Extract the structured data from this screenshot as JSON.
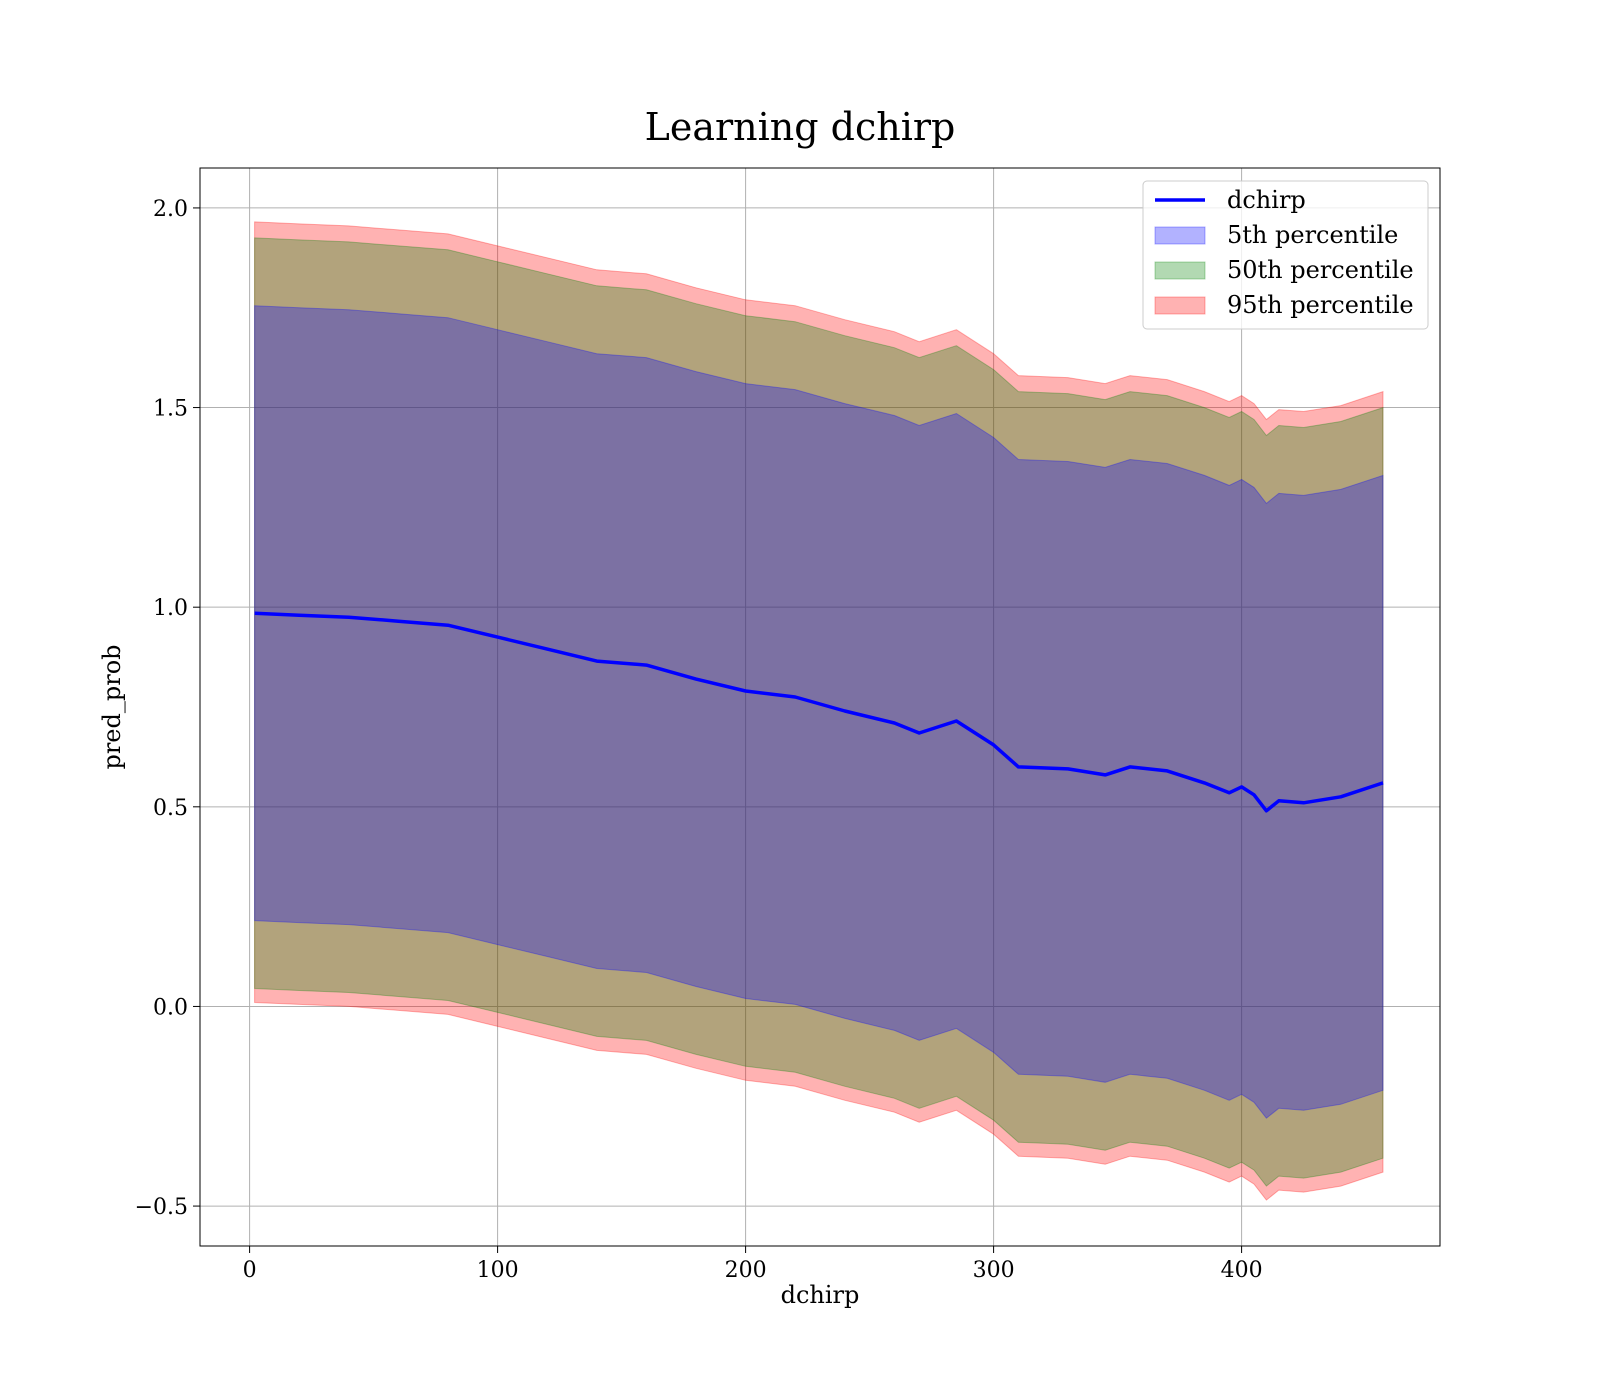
{
  "chart_data": {
    "type": "area",
    "title": "Learning dchirp",
    "xlabel": "dchirp",
    "ylabel": "pred_prob",
    "xlim": [
      -20,
      480
    ],
    "ylim": [
      -0.6,
      2.1
    ],
    "xticks": [
      0,
      100,
      200,
      300,
      400
    ],
    "yticks": [
      -0.5,
      0.0,
      0.5,
      1.0,
      1.5,
      2.0
    ],
    "xtick_labels": [
      "0",
      "100",
      "200",
      "300",
      "400"
    ],
    "ytick_labels": [
      "−0.5",
      "0.0",
      "0.5",
      "1.0",
      "1.5",
      "2.0"
    ],
    "grid": true,
    "legend_position": "top-right",
    "x": [
      2,
      20,
      40,
      60,
      80,
      100,
      120,
      140,
      160,
      180,
      200,
      220,
      240,
      260,
      270,
      285,
      300,
      310,
      330,
      345,
      355,
      370,
      385,
      395,
      400,
      405,
      410,
      415,
      425,
      440,
      457
    ],
    "series": [
      {
        "name": "dchirp",
        "kind": "line",
        "color": "#0000ff",
        "values": [
          0.985,
          0.98,
          0.975,
          0.965,
          0.955,
          0.925,
          0.895,
          0.865,
          0.855,
          0.82,
          0.79,
          0.775,
          0.74,
          0.71,
          0.685,
          0.715,
          0.655,
          0.6,
          0.595,
          0.58,
          0.6,
          0.59,
          0.56,
          0.535,
          0.55,
          0.53,
          0.49,
          0.515,
          0.51,
          0.525,
          0.56
        ]
      },
      {
        "name": "5th percentile",
        "kind": "band",
        "color": "#0000ff",
        "upper": [
          1.755,
          1.75,
          1.745,
          1.735,
          1.725,
          1.695,
          1.665,
          1.635,
          1.625,
          1.59,
          1.56,
          1.545,
          1.51,
          1.48,
          1.455,
          1.485,
          1.425,
          1.37,
          1.365,
          1.35,
          1.37,
          1.36,
          1.33,
          1.305,
          1.32,
          1.3,
          1.26,
          1.285,
          1.28,
          1.295,
          1.33
        ],
        "lower": [
          0.215,
          0.21,
          0.205,
          0.195,
          0.185,
          0.155,
          0.125,
          0.095,
          0.085,
          0.05,
          0.02,
          0.005,
          -0.03,
          -0.06,
          -0.085,
          -0.055,
          -0.115,
          -0.17,
          -0.175,
          -0.19,
          -0.17,
          -0.18,
          -0.21,
          -0.235,
          -0.22,
          -0.24,
          -0.28,
          -0.255,
          -0.26,
          -0.245,
          -0.21
        ]
      },
      {
        "name": "50th percentile",
        "kind": "band",
        "color": "#008000",
        "upper": [
          1.925,
          1.92,
          1.915,
          1.905,
          1.895,
          1.865,
          1.835,
          1.805,
          1.795,
          1.76,
          1.73,
          1.715,
          1.68,
          1.65,
          1.625,
          1.655,
          1.595,
          1.54,
          1.535,
          1.52,
          1.54,
          1.53,
          1.5,
          1.475,
          1.49,
          1.47,
          1.43,
          1.455,
          1.45,
          1.465,
          1.5
        ],
        "lower": [
          0.045,
          0.04,
          0.035,
          0.025,
          0.015,
          -0.015,
          -0.045,
          -0.075,
          -0.085,
          -0.12,
          -0.15,
          -0.165,
          -0.2,
          -0.23,
          -0.255,
          -0.225,
          -0.285,
          -0.34,
          -0.345,
          -0.36,
          -0.34,
          -0.35,
          -0.38,
          -0.405,
          -0.39,
          -0.41,
          -0.45,
          -0.425,
          -0.43,
          -0.415,
          -0.38
        ]
      },
      {
        "name": "95th percentile",
        "kind": "band",
        "color": "#ff0000",
        "upper": [
          1.965,
          1.96,
          1.955,
          1.945,
          1.935,
          1.905,
          1.875,
          1.845,
          1.835,
          1.8,
          1.77,
          1.755,
          1.72,
          1.69,
          1.665,
          1.695,
          1.635,
          1.58,
          1.575,
          1.56,
          1.58,
          1.57,
          1.54,
          1.515,
          1.53,
          1.51,
          1.47,
          1.495,
          1.49,
          1.505,
          1.54
        ],
        "lower": [
          0.01,
          0.005,
          0.0,
          -0.01,
          -0.02,
          -0.05,
          -0.08,
          -0.11,
          -0.12,
          -0.155,
          -0.185,
          -0.2,
          -0.235,
          -0.265,
          -0.29,
          -0.26,
          -0.32,
          -0.375,
          -0.38,
          -0.395,
          -0.375,
          -0.385,
          -0.415,
          -0.44,
          -0.425,
          -0.445,
          -0.485,
          -0.46,
          -0.465,
          -0.45,
          -0.415
        ]
      }
    ]
  }
}
